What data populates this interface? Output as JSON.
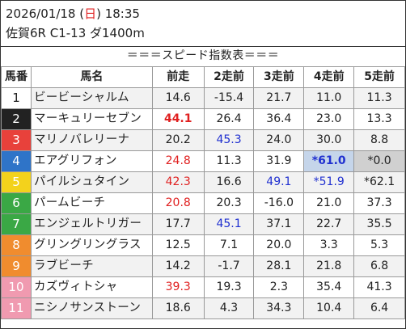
{
  "header": {
    "date_prefix": "2026/01/18 (",
    "weekday": "日",
    "date_suffix": ") 18:35",
    "race": "佐賀6R C1-13 ダ1400m"
  },
  "subtitle": "＝＝＝スピード指数表＝＝＝",
  "table": {
    "columns": [
      "馬番",
      "馬名",
      "前走",
      "2走前",
      "3走前",
      "4走前",
      "5走前"
    ],
    "rows": [
      {
        "num": "1",
        "name": "ビービーシャルム",
        "vals": [
          "14.6",
          "-15.4",
          "21.7",
          "11.0",
          "11.3"
        ],
        "num_bg": "#ffffff",
        "num_fg": "#222222",
        "styles": [
          "",
          "",
          "",
          "",
          ""
        ]
      },
      {
        "num": "2",
        "name": "マーキュリーセブン",
        "vals": [
          "44.1",
          "26.4",
          "36.4",
          "23.0",
          "13.3"
        ],
        "num_bg": "#222222",
        "num_fg": "#ffffff",
        "styles": [
          "boldred",
          "",
          "",
          "",
          ""
        ]
      },
      {
        "num": "3",
        "name": "マリノバレリーナ",
        "vals": [
          "20.2",
          "45.3",
          "24.0",
          "30.0",
          "8.8"
        ],
        "num_bg": "#e8413b",
        "num_fg": "#ffffff",
        "styles": [
          "",
          "blue",
          "",
          "",
          ""
        ]
      },
      {
        "num": "4",
        "name": "エアグリフォン",
        "vals": [
          "24.8",
          "11.3",
          "31.9",
          "*61.0",
          "*0.0"
        ],
        "num_bg": "#2f74c8",
        "num_fg": "#ffffff",
        "styles": [
          "red",
          "",
          "",
          "boldblue hl",
          "gray"
        ]
      },
      {
        "num": "5",
        "name": "パイルシュタイン",
        "vals": [
          "42.3",
          "16.6",
          "49.1",
          "*51.9",
          "*62.1"
        ],
        "num_bg": "#f3d21c",
        "num_fg": "#ffffff",
        "styles": [
          "red",
          "",
          "blue",
          "blue",
          ""
        ]
      },
      {
        "num": "6",
        "name": "パームビーチ",
        "vals": [
          "20.8",
          "20.3",
          "-16.0",
          "21.0",
          "37.3"
        ],
        "num_bg": "#3aa845",
        "num_fg": "#ffffff",
        "styles": [
          "red",
          "",
          "",
          "",
          ""
        ]
      },
      {
        "num": "7",
        "name": "エンジェルトリガー",
        "vals": [
          "17.7",
          "45.1",
          "37.1",
          "22.7",
          "35.5"
        ],
        "num_bg": "#3aa845",
        "num_fg": "#ffffff",
        "styles": [
          "",
          "blue",
          "",
          "",
          ""
        ]
      },
      {
        "num": "8",
        "name": "グリングリングラス",
        "vals": [
          "12.5",
          "7.1",
          "20.0",
          "3.3",
          "5.3"
        ],
        "num_bg": "#f08c2e",
        "num_fg": "#ffffff",
        "styles": [
          "",
          "",
          "",
          "",
          ""
        ]
      },
      {
        "num": "9",
        "name": "ラブビーチ",
        "vals": [
          "14.2",
          "-1.7",
          "28.1",
          "21.8",
          "6.8"
        ],
        "num_bg": "#f08c2e",
        "num_fg": "#ffffff",
        "styles": [
          "",
          "",
          "",
          "",
          ""
        ]
      },
      {
        "num": "10",
        "name": "カズヴィトシャ",
        "vals": [
          "39.3",
          "19.3",
          "2.3",
          "35.4",
          "41.3"
        ],
        "num_bg": "#f09ab0",
        "num_fg": "#ffffff",
        "styles": [
          "red",
          "",
          "",
          "",
          ""
        ]
      },
      {
        "num": "11",
        "name": "ニシノサンストーン",
        "vals": [
          "18.6",
          "4.3",
          "34.3",
          "10.4",
          "6.4"
        ],
        "num_bg": "#f09ab0",
        "num_fg": "#ffffff",
        "styles": [
          "",
          "",
          "",
          "",
          ""
        ]
      }
    ]
  }
}
